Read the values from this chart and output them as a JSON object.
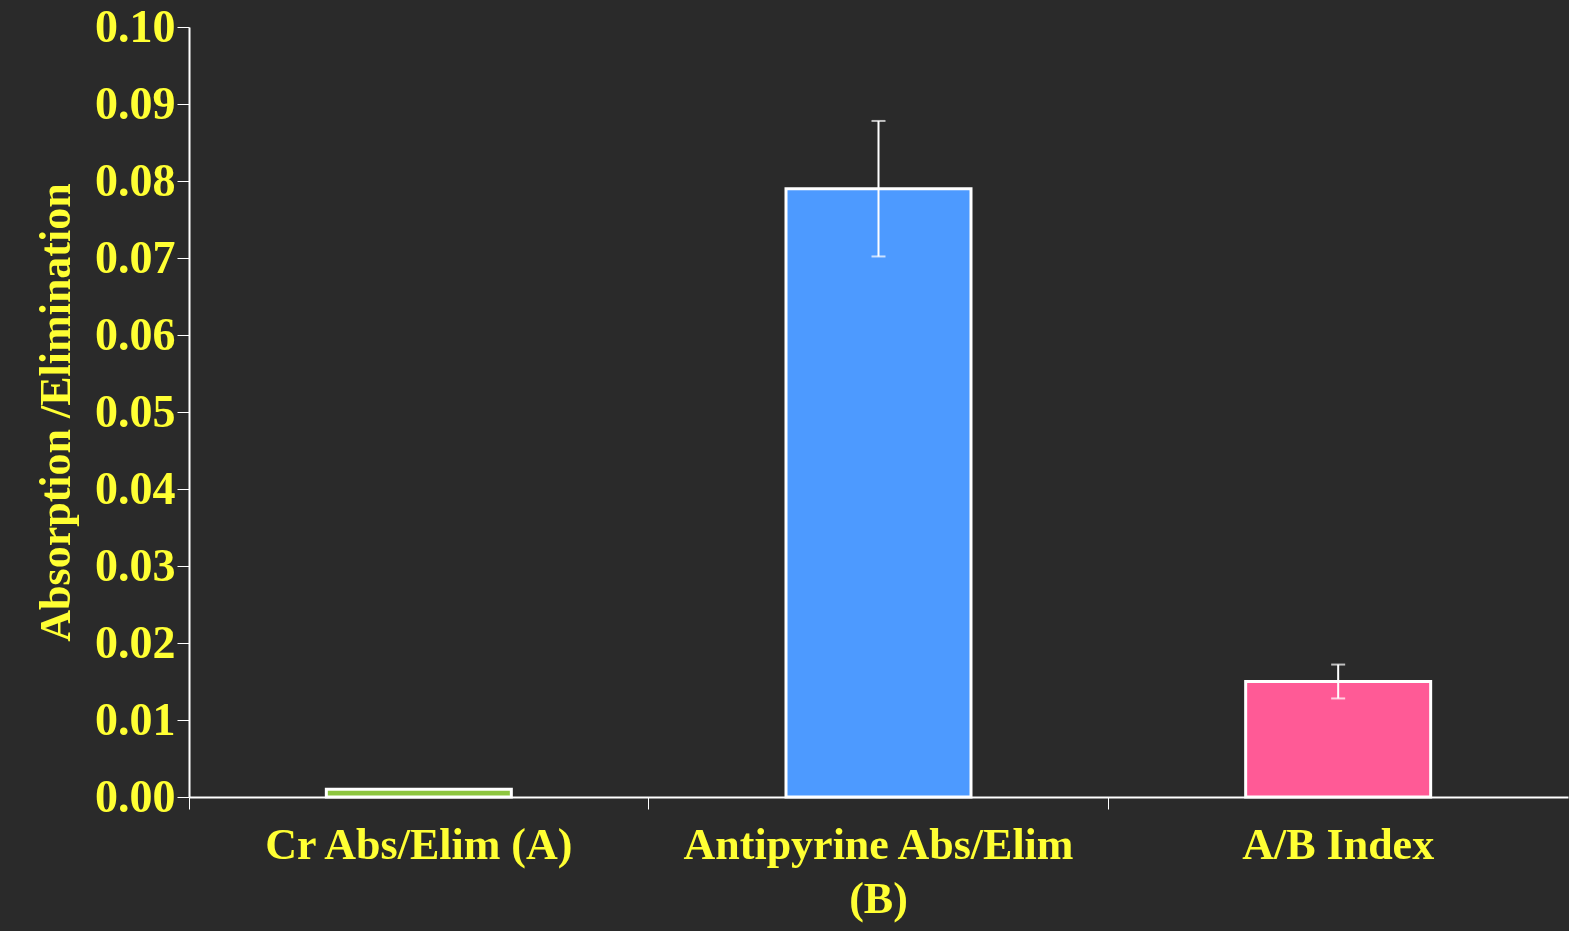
{
  "chart_data": {
    "type": "bar",
    "ylabel": "Absorption /Elimination",
    "categories": [
      "Cr Abs/Elim (A)",
      "Antipyrine Abs/Elim (B)",
      "A/B Index"
    ],
    "values": [
      0.001,
      0.079,
      0.015
    ],
    "colors": [
      "#8dc63f",
      "#4d9aff",
      "#ff5a96"
    ],
    "errors": [
      null,
      0.0088,
      0.0022
    ],
    "ylim": [
      0,
      0.1
    ],
    "yticks": [
      {
        "value": 0,
        "label": "0.00"
      },
      {
        "value": 0.01,
        "label": "0.01"
      },
      {
        "value": 0.02,
        "label": "0.02"
      },
      {
        "value": 0.03,
        "label": "0.03"
      },
      {
        "value": 0.04,
        "label": "0.04"
      },
      {
        "value": 0.05,
        "label": "0.05"
      },
      {
        "value": 0.06,
        "label": "0.06"
      },
      {
        "value": 0.07,
        "label": "0.07"
      },
      {
        "value": 0.08,
        "label": "0.08"
      },
      {
        "value": 0.09,
        "label": "0.09"
      },
      {
        "value": 0.1,
        "label": "0.10"
      }
    ],
    "grid": false
  }
}
